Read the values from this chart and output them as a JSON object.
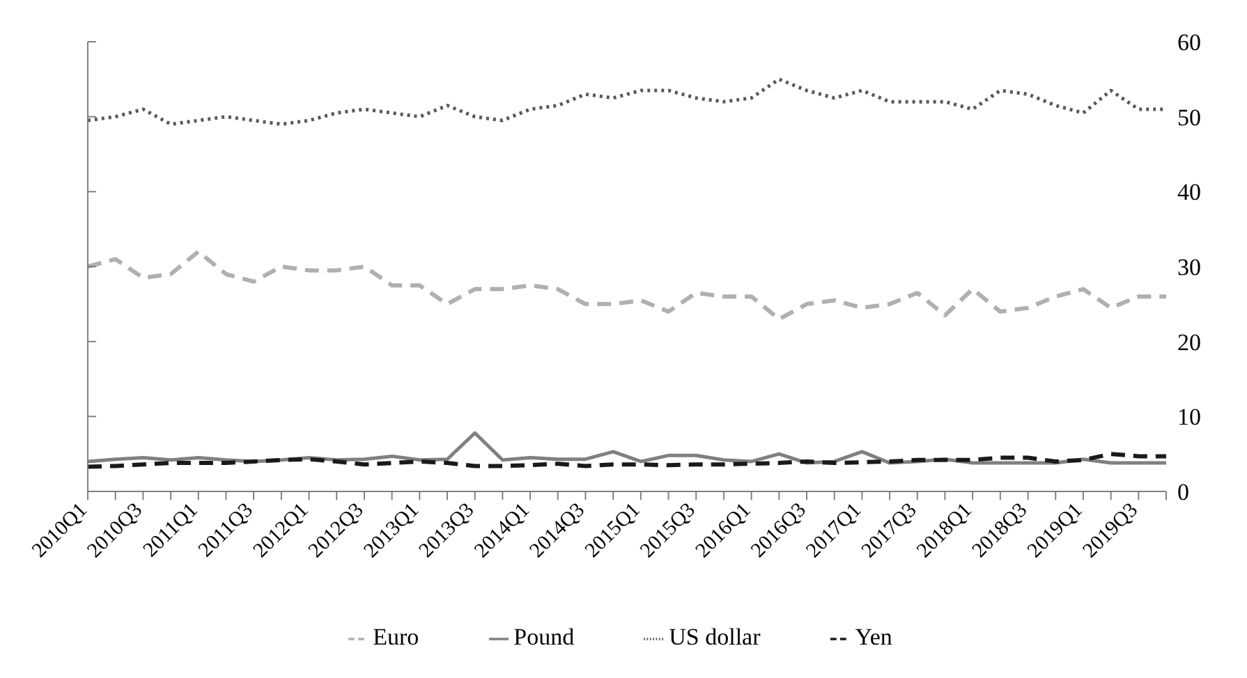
{
  "chart_data": {
    "type": "line",
    "categories": [
      "2010Q1",
      null,
      "2010Q3",
      null,
      "2011Q1",
      null,
      "2011Q3",
      null,
      "2012Q1",
      null,
      "2012Q3",
      null,
      "2013Q1",
      null,
      "2013Q3",
      null,
      "2014Q1",
      null,
      "2014Q3",
      null,
      "2015Q1",
      null,
      "2015Q3",
      null,
      "2016Q1",
      null,
      "2016Q3",
      null,
      "2017Q1",
      null,
      "2017Q3",
      null,
      "2018Q1",
      null,
      "2018Q3",
      null,
      "2019Q1",
      null,
      "2019Q3",
      null
    ],
    "series": [
      {
        "name": "US dollar",
        "color": "#595959",
        "line_style": "dotted",
        "values": [
          49.5,
          50,
          51,
          49,
          49.5,
          50,
          49.5,
          49,
          49.5,
          50.5,
          51,
          50.5,
          50,
          51.5,
          50,
          49.5,
          51,
          51.5,
          53,
          52.5,
          53.5,
          53.5,
          52.5,
          52,
          52.5,
          55,
          53.5,
          52.5,
          53.5,
          52,
          52,
          52,
          51,
          53.5,
          53,
          51.5,
          50.5,
          53.5,
          51,
          51
        ]
      },
      {
        "name": "Euro",
        "color": "#b0b0b0",
        "line_style": "dashed",
        "values": [
          30,
          31,
          28.5,
          29,
          32,
          29,
          28,
          30,
          29.5,
          29.5,
          30,
          27.5,
          27.5,
          25,
          27,
          27,
          27.5,
          27,
          25,
          25,
          25.5,
          24,
          26.5,
          26,
          26,
          23,
          25,
          25.5,
          24.5,
          25,
          26.5,
          23.5,
          27,
          24,
          24.5,
          26,
          27,
          24.5,
          26,
          26
        ]
      },
      {
        "name": "Pound",
        "color": "#808080",
        "line_style": "solid",
        "values": [
          4,
          4.3,
          4.5,
          4.2,
          4.5,
          4.2,
          4,
          4.2,
          4.5,
          4.2,
          4.3,
          4.7,
          4.2,
          4.3,
          7.8,
          4.2,
          4.5,
          4.3,
          4.3,
          5.3,
          4,
          4.8,
          4.8,
          4.2,
          4,
          5,
          3.8,
          4,
          5.3,
          3.8,
          4,
          4.3,
          3.8,
          3.8,
          3.8,
          3.8,
          4.3,
          3.8,
          3.8,
          3.8
        ]
      },
      {
        "name": "Yen",
        "color": "#1a1a1a",
        "line_style": "dashed",
        "values": [
          3.3,
          3.4,
          3.6,
          3.8,
          3.8,
          3.8,
          4,
          4.2,
          4.3,
          4,
          3.6,
          3.8,
          4,
          3.8,
          3.4,
          3.4,
          3.5,
          3.7,
          3.4,
          3.6,
          3.6,
          3.5,
          3.6,
          3.6,
          3.7,
          3.8,
          4,
          3.8,
          3.9,
          4,
          4.2,
          4.2,
          4.2,
          4.5,
          4.5,
          4,
          4.2,
          5,
          4.7,
          4.7
        ]
      }
    ],
    "ylim": [
      0,
      60
    ],
    "yticks": [
      0,
      10,
      20,
      30,
      40,
      50,
      60
    ],
    "grid": false,
    "legend": "bottom",
    "marker": "none"
  }
}
